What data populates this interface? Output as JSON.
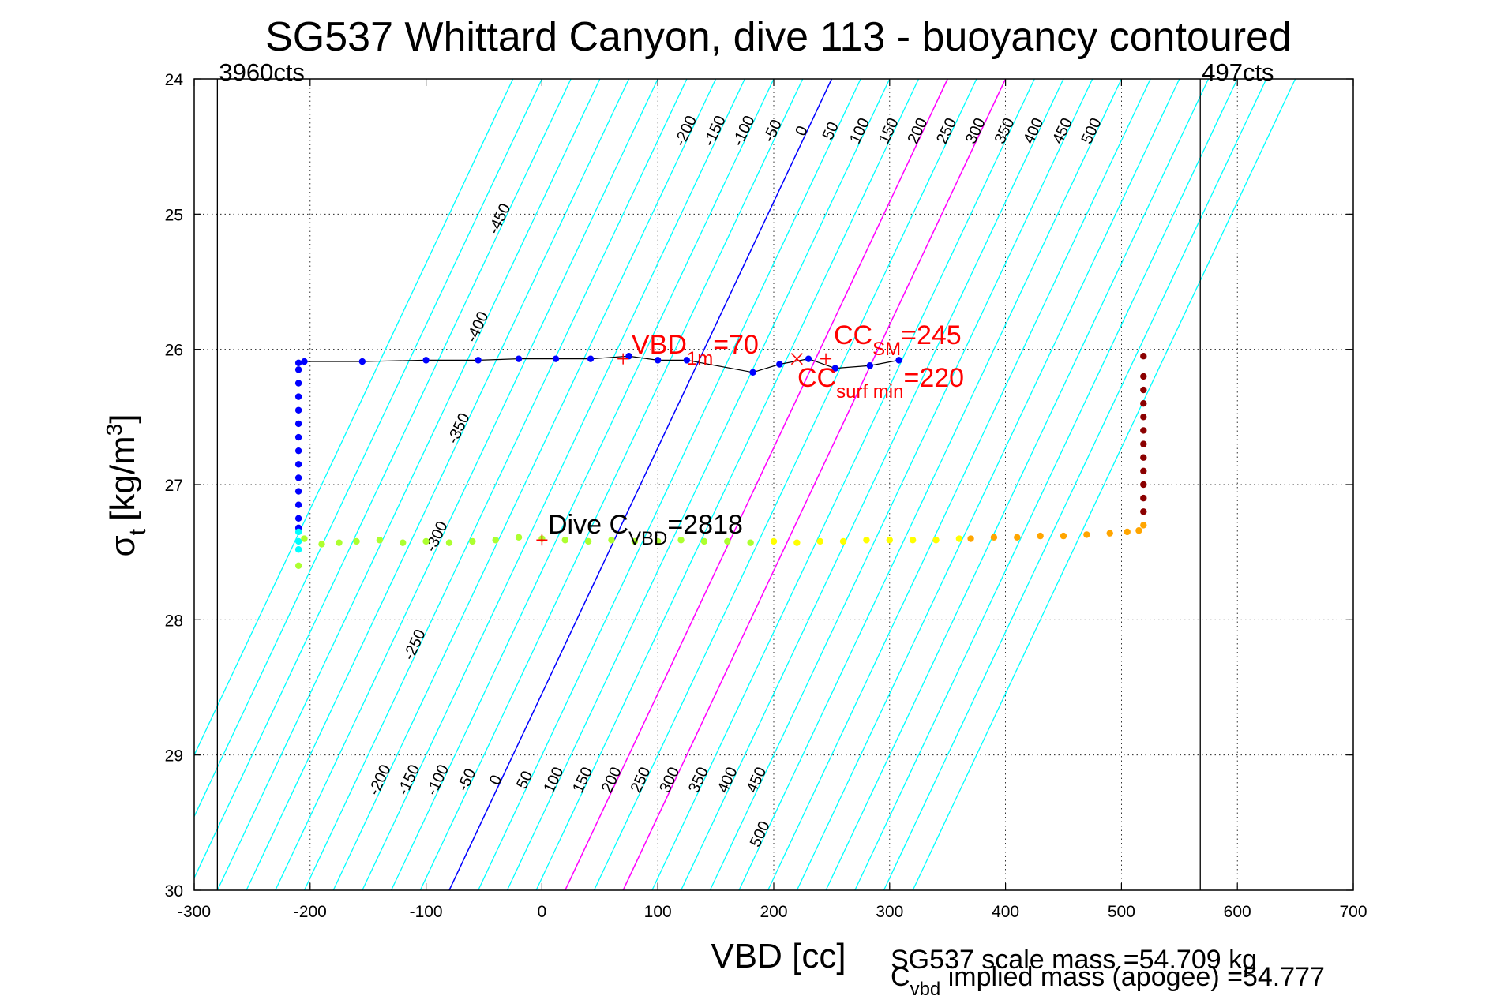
{
  "chart_data": {
    "type": "scatter",
    "title": "SG537 Whittard Canyon, dive 113 - buoyancy contoured",
    "xlabel": "VBD [cc]",
    "ylabel": {
      "base": "σ",
      "sub": "t",
      "units_pre": "[kg/m",
      "units_sup": "3",
      "units_post": "]"
    },
    "xlim": [
      -300,
      700
    ],
    "ylim": [
      24,
      30
    ],
    "y_reversed": true,
    "grid": true,
    "x_ticks": [
      -300,
      -200,
      -100,
      0,
      100,
      200,
      300,
      400,
      500,
      600,
      700
    ],
    "y_ticks": [
      24,
      25,
      26,
      27,
      28,
      29,
      30
    ],
    "vertical_lines": [
      {
        "x": -280,
        "label": "3960cts",
        "color": "#000000"
      },
      {
        "x": 568,
        "label": "497cts",
        "color": "#000000"
      }
    ],
    "contours": {
      "values": [
        -450,
        -400,
        -350,
        -300,
        -250,
        -200,
        -150,
        -100,
        -50,
        0,
        50,
        100,
        150,
        200,
        250,
        300,
        350,
        400,
        450,
        500
      ],
      "color": "#00ffff",
      "zero_color": "#0000ff",
      "highlight_color": "#ff00ff",
      "highlight_values": [
        200,
        300
      ],
      "top_labels": [
        "-200",
        "-150",
        "-100",
        "-50",
        "0",
        "50",
        "100",
        "150",
        "200",
        "250",
        "300",
        "350",
        "400",
        "450",
        "500"
      ],
      "bottom_labels": [
        "-200",
        "-150",
        "-100",
        "-50",
        "0",
        "50",
        "100",
        "150",
        "200",
        "250",
        "300",
        "350",
        "400",
        "450",
        "500"
      ],
      "left_labels": [
        "-450",
        "-400",
        "-350",
        "-300",
        "-250"
      ]
    },
    "series": [
      {
        "color": "#0000ff",
        "line_color": "#000000",
        "x": [
          -210,
          -205,
          -155,
          -100,
          -55,
          -20,
          12,
          42,
          75,
          100,
          125,
          182,
          205,
          230,
          253,
          283,
          308
        ],
        "y": [
          26.1,
          26.09,
          26.09,
          26.08,
          26.08,
          26.07,
          26.07,
          26.07,
          26.05,
          26.08,
          26.08,
          26.17,
          26.11,
          26.07,
          26.14,
          26.12,
          26.08
        ]
      },
      {
        "color": "#0000ff",
        "x": [
          -210,
          -210,
          -210,
          -210,
          -210,
          -210,
          -210,
          -210,
          -210,
          -210,
          -210,
          -210,
          -210
        ],
        "y": [
          26.15,
          26.25,
          26.35,
          26.45,
          26.55,
          26.65,
          26.75,
          26.85,
          26.95,
          27.05,
          27.15,
          27.25,
          27.32
        ]
      },
      {
        "color": "#00ffff",
        "x": [
          -210,
          -210,
          -210
        ],
        "y": [
          27.35,
          27.42,
          27.48
        ]
      },
      {
        "color": "#adff2f",
        "x": [
          -210,
          -205,
          -190,
          -175,
          -160,
          -140,
          -120,
          -100,
          -80,
          -60,
          -40,
          -20,
          0,
          20,
          40,
          60,
          80,
          100,
          120,
          140,
          160,
          180
        ],
        "y": [
          27.6,
          27.4,
          27.44,
          27.43,
          27.42,
          27.41,
          27.43,
          27.42,
          27.43,
          27.42,
          27.41,
          27.39,
          27.4,
          27.41,
          27.42,
          27.41,
          27.42,
          27.42,
          27.41,
          27.42,
          27.42,
          27.43
        ]
      },
      {
        "color": "#ffff00",
        "x": [
          200,
          220,
          240,
          260,
          280,
          300,
          320,
          340,
          360
        ],
        "y": [
          27.42,
          27.43,
          27.42,
          27.42,
          27.41,
          27.41,
          27.41,
          27.41,
          27.4
        ]
      },
      {
        "color": "#ffa500",
        "x": [
          370,
          390,
          410,
          430,
          450,
          470,
          490,
          505,
          515,
          519
        ],
        "y": [
          27.4,
          27.39,
          27.39,
          27.38,
          27.38,
          27.37,
          27.36,
          27.35,
          27.34,
          27.3
        ]
      },
      {
        "color": "#8b0000",
        "x": [
          519,
          519,
          519,
          519,
          519,
          519,
          519,
          519,
          519,
          519,
          519,
          519
        ],
        "y": [
          27.2,
          27.1,
          27.0,
          26.9,
          26.8,
          26.7,
          26.6,
          26.5,
          26.4,
          26.3,
          26.2,
          26.05
        ]
      }
    ],
    "markers": [
      {
        "x": 70,
        "y": 26.07,
        "symbol": "+",
        "color": "#ff0000"
      },
      {
        "x": 220,
        "y": 26.07,
        "symbol": "x",
        "color": "#ff0000"
      },
      {
        "x": 245,
        "y": 26.07,
        "symbol": "+",
        "color": "#ff0000"
      },
      {
        "x": 0,
        "y": 27.41,
        "symbol": "+",
        "color": "#ff0000"
      }
    ],
    "annotations": {
      "vbd1m": {
        "main": "VBD",
        "sub": "1m",
        "tail": "=70"
      },
      "ccsm": {
        "main": "CC",
        "sub": "SM",
        "tail": "=245"
      },
      "ccsurf": {
        "main": "CC",
        "sub": "surf min",
        "tail": "=220"
      },
      "divecvbd": {
        "main": "Dive C",
        "sub": "VBD",
        "tail": "=2818"
      }
    },
    "notes": {
      "scale_mass": "SG537 scale mass =54.709 kg",
      "implied_main": "C",
      "implied_sub": "vbd",
      "implied_tail": " implied mass (apogee) =54.777"
    }
  }
}
